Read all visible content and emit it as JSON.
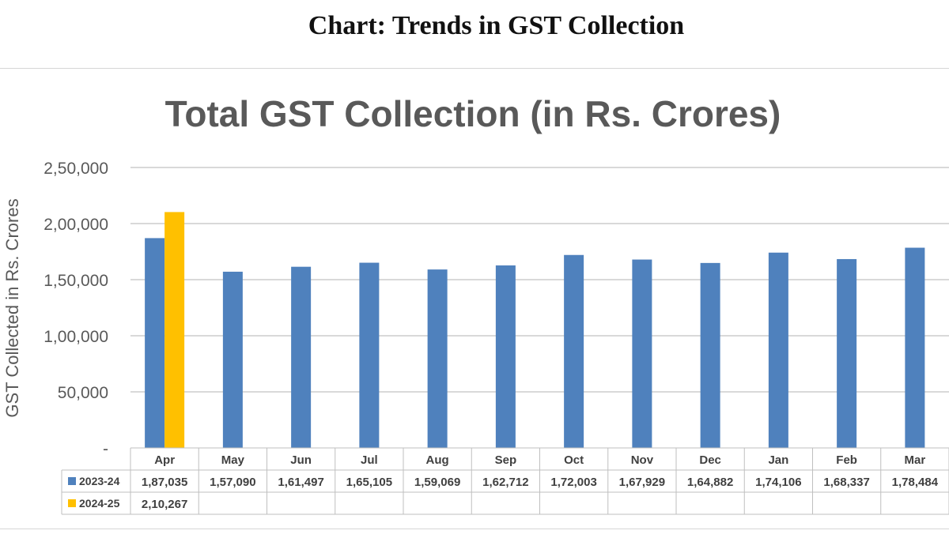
{
  "page_title": "Chart: Trends in GST Collection",
  "colors": {
    "series_2023_24": "#4f81bd",
    "series_2024_25": "#ffc000",
    "grid": "#d9d9d9",
    "text": "#595959"
  },
  "chart_data": {
    "type": "bar",
    "title": "Total GST Collection (in Rs. Crores)",
    "xlabel": "",
    "ylabel": "GST Collected in Rs. Crores",
    "ylim": [
      0,
      250000
    ],
    "yticks": [
      0,
      50000,
      100000,
      150000,
      200000,
      250000
    ],
    "ytick_labels": [
      "-",
      "50,000",
      "1,00,000",
      "1,50,000",
      "2,00,000",
      "2,50,000"
    ],
    "grid": true,
    "legend": "data-table",
    "categories": [
      "Apr",
      "May",
      "Jun",
      "Jul",
      "Aug",
      "Sep",
      "Oct",
      "Nov",
      "Dec",
      "Jan",
      "Feb",
      "Mar"
    ],
    "series": [
      {
        "name": "2023-24",
        "color": "#4f81bd",
        "values": [
          187035,
          157090,
          161497,
          165105,
          159069,
          162712,
          172003,
          167929,
          164882,
          174106,
          168337,
          178484
        ],
        "labels": [
          "1,87,035",
          "1,57,090",
          "1,61,497",
          "1,65,105",
          "1,59,069",
          "1,62,712",
          "1,72,003",
          "1,67,929",
          "1,64,882",
          "1,74,106",
          "1,68,337",
          "1,78,484"
        ]
      },
      {
        "name": "2024-25",
        "color": "#ffc000",
        "values": [
          210267,
          null,
          null,
          null,
          null,
          null,
          null,
          null,
          null,
          null,
          null,
          null
        ],
        "labels": [
          "2,10,267",
          "",
          "",
          "",
          "",
          "",
          "",
          "",
          "",
          "",
          "",
          ""
        ]
      }
    ]
  }
}
